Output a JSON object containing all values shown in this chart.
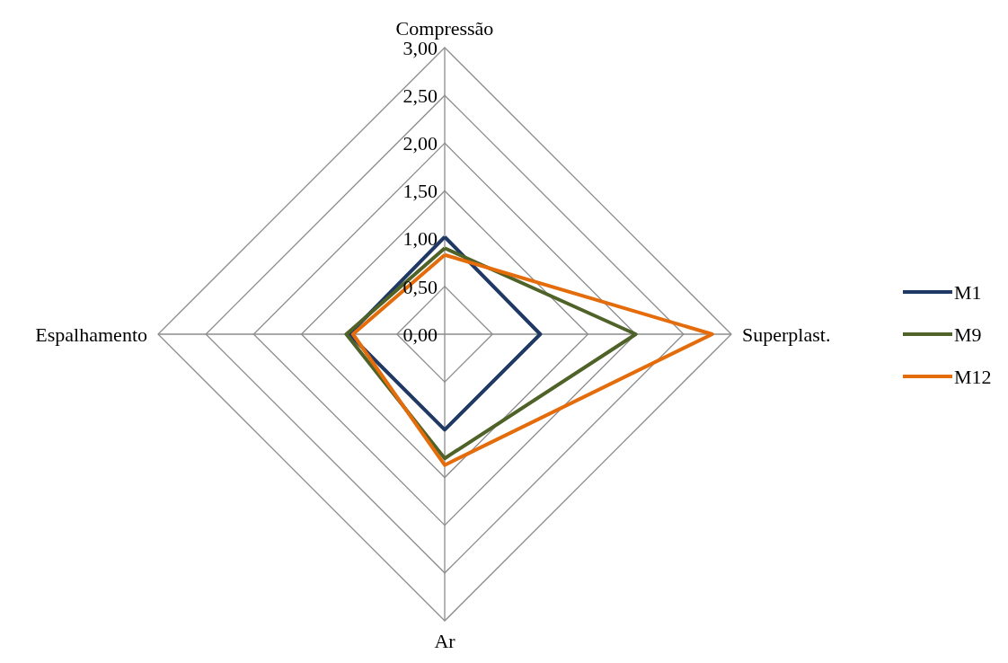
{
  "chart_data": {
    "type": "radar",
    "categories": [
      "Compressão",
      "Superplast.",
      "Ar",
      "Espalhamento"
    ],
    "series": [
      {
        "name": "M1",
        "color": "#1f3864",
        "values": [
          1.02,
          1.0,
          1.0,
          1.0
        ]
      },
      {
        "name": "M9",
        "color": "#4f6228",
        "values": [
          0.9,
          2.0,
          1.3,
          1.03
        ]
      },
      {
        "name": "M12",
        "color": "#e46c0a",
        "values": [
          0.83,
          2.8,
          1.37,
          0.96
        ]
      }
    ],
    "ylim": [
      0,
      3
    ],
    "yticks": [
      {
        "value": 0,
        "label": "0,00"
      },
      {
        "value": 0.5,
        "label": "0,50"
      },
      {
        "value": 1,
        "label": "1,00"
      },
      {
        "value": 1.5,
        "label": "1,50"
      },
      {
        "value": 2,
        "label": "2,00"
      },
      {
        "value": 2.5,
        "label": "2,50"
      },
      {
        "value": 3,
        "label": "3,00"
      }
    ],
    "grid": true,
    "legend": "right"
  }
}
